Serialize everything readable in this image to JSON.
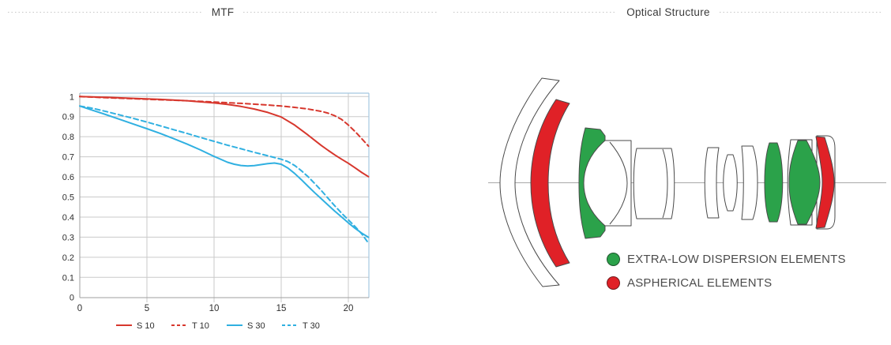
{
  "panels": {
    "mtf": {
      "title": "MTF"
    },
    "optical": {
      "title": "Optical Structure",
      "legend": [
        {
          "label": "EXTRA-LOW DISPERSION ELEMENTS",
          "color": "#2ba24a"
        },
        {
          "label": "ASPHERICAL ELEMENTS",
          "color": "#e02127"
        }
      ],
      "colors": {
        "standard": "#ffffff",
        "eld": "#2ba24a",
        "aspherical": "#e02127",
        "outline": "#4a4a4a"
      }
    }
  },
  "chart_data": {
    "type": "line",
    "title": "MTF",
    "xlabel": "",
    "ylabel": "",
    "xlim": [
      0,
      21.6
    ],
    "ylim": [
      0,
      1
    ],
    "grid": true,
    "legend_position": "bottom",
    "x_ticks": {
      "values": [
        0,
        5,
        10,
        15,
        20
      ],
      "labels": [
        "0",
        "5",
        "10",
        "15",
        "20"
      ]
    },
    "y_ticks": {
      "values": [
        0,
        0.1,
        0.2,
        0.3,
        0.4,
        0.5,
        0.6,
        0.7,
        0.8,
        0.9,
        1
      ],
      "labels": [
        "0",
        "0.1",
        "0.2",
        "0.3",
        "0.4",
        "0.5",
        "0.6",
        "0.7",
        "0.8",
        "0.9",
        "1"
      ]
    },
    "colors": {
      "grid": "#cacaca",
      "frame": "#a5c8e1",
      "axis": "#9f9f9f"
    },
    "series": [
      {
        "name": "S 10",
        "color": "#d7372d",
        "dash": "solid",
        "points": [
          [
            0,
            1.0
          ],
          [
            2,
            0.996
          ],
          [
            4,
            0.991
          ],
          [
            6,
            0.986
          ],
          [
            8,
            0.979
          ],
          [
            10,
            0.968
          ],
          [
            11,
            0.961
          ],
          [
            12,
            0.951
          ],
          [
            13,
            0.938
          ],
          [
            14,
            0.921
          ],
          [
            15,
            0.898
          ],
          [
            16,
            0.858
          ],
          [
            17,
            0.808
          ],
          [
            17.5,
            0.782
          ],
          [
            18,
            0.756
          ],
          [
            18.5,
            0.732
          ],
          [
            19,
            0.709
          ],
          [
            19.5,
            0.688
          ],
          [
            20,
            0.668
          ],
          [
            20.5,
            0.645
          ],
          [
            21,
            0.622
          ],
          [
            21.5,
            0.601
          ]
        ]
      },
      {
        "name": "T 10",
        "color": "#d7372d",
        "dash": "dashed",
        "points": [
          [
            0,
            1.0
          ],
          [
            2,
            0.994
          ],
          [
            4,
            0.989
          ],
          [
            6,
            0.984
          ],
          [
            8,
            0.979
          ],
          [
            10,
            0.973
          ],
          [
            12,
            0.966
          ],
          [
            14,
            0.958
          ],
          [
            15,
            0.953
          ],
          [
            16,
            0.946
          ],
          [
            17,
            0.938
          ],
          [
            18,
            0.926
          ],
          [
            18.5,
            0.917
          ],
          [
            19,
            0.904
          ],
          [
            19.5,
            0.886
          ],
          [
            20,
            0.858
          ],
          [
            20.5,
            0.826
          ],
          [
            21,
            0.79
          ],
          [
            21.5,
            0.753
          ]
        ]
      },
      {
        "name": "S 30",
        "color": "#30b0e1",
        "dash": "solid",
        "points": [
          [
            0,
            0.953
          ],
          [
            1,
            0.931
          ],
          [
            2,
            0.909
          ],
          [
            3,
            0.886
          ],
          [
            4,
            0.863
          ],
          [
            5,
            0.84
          ],
          [
            6,
            0.816
          ],
          [
            7,
            0.79
          ],
          [
            8,
            0.763
          ],
          [
            9,
            0.734
          ],
          [
            10,
            0.702
          ],
          [
            11,
            0.673
          ],
          [
            11.5,
            0.663
          ],
          [
            12,
            0.657
          ],
          [
            12.5,
            0.654
          ],
          [
            13,
            0.656
          ],
          [
            13.5,
            0.661
          ],
          [
            14,
            0.666
          ],
          [
            14.5,
            0.669
          ],
          [
            15,
            0.663
          ],
          [
            15.5,
            0.644
          ],
          [
            16,
            0.617
          ],
          [
            16.5,
            0.586
          ],
          [
            17,
            0.553
          ],
          [
            17.5,
            0.521
          ],
          [
            18,
            0.49
          ],
          [
            18.5,
            0.459
          ],
          [
            19,
            0.429
          ],
          [
            19.5,
            0.4
          ],
          [
            20,
            0.371
          ],
          [
            20.5,
            0.344
          ],
          [
            21,
            0.32
          ],
          [
            21.5,
            0.299
          ]
        ]
      },
      {
        "name": "T 30",
        "color": "#30b0e1",
        "dash": "dashed",
        "points": [
          [
            0,
            0.953
          ],
          [
            1,
            0.941
          ],
          [
            2,
            0.925
          ],
          [
            3,
            0.908
          ],
          [
            4,
            0.891
          ],
          [
            5,
            0.873
          ],
          [
            6,
            0.854
          ],
          [
            7,
            0.835
          ],
          [
            8,
            0.816
          ],
          [
            9,
            0.796
          ],
          [
            10,
            0.777
          ],
          [
            11,
            0.758
          ],
          [
            12,
            0.74
          ],
          [
            13,
            0.722
          ],
          [
            14,
            0.705
          ],
          [
            15,
            0.688
          ],
          [
            15.5,
            0.676
          ],
          [
            16,
            0.657
          ],
          [
            16.5,
            0.631
          ],
          [
            17,
            0.601
          ],
          [
            17.5,
            0.567
          ],
          [
            18,
            0.531
          ],
          [
            18.5,
            0.493
          ],
          [
            19,
            0.455
          ],
          [
            19.5,
            0.419
          ],
          [
            20,
            0.386
          ],
          [
            20.5,
            0.353
          ],
          [
            21,
            0.316
          ],
          [
            21.5,
            0.27
          ]
        ]
      }
    ]
  }
}
